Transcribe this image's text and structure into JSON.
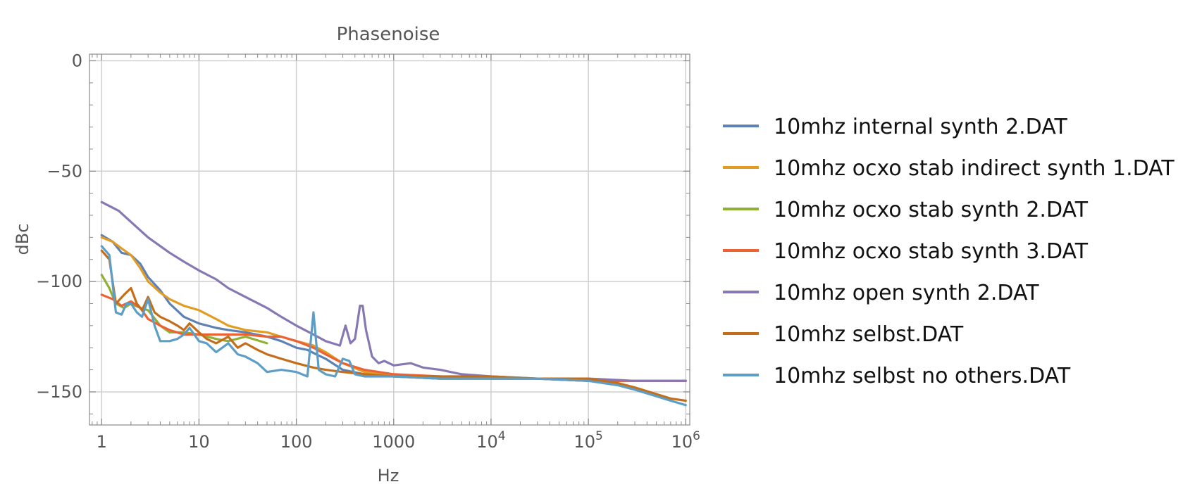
{
  "chart_data": {
    "type": "line",
    "title": "Phasenoise",
    "xlabel": "Hz",
    "ylabel": "dBc",
    "x_scale": "log",
    "xlim": [
      0.75,
      1100000
    ],
    "ylim": [
      -165,
      3
    ],
    "x_ticks": [
      {
        "value": 1,
        "base": "1",
        "exp": ""
      },
      {
        "value": 10,
        "base": "10",
        "exp": ""
      },
      {
        "value": 100,
        "base": "100",
        "exp": ""
      },
      {
        "value": 1000,
        "base": "1000",
        "exp": ""
      },
      {
        "value": 10000,
        "base": "10",
        "exp": "4"
      },
      {
        "value": 100000,
        "base": "10",
        "exp": "5"
      },
      {
        "value": 1000000,
        "base": "10",
        "exp": "6"
      }
    ],
    "y_ticks": [
      {
        "value": 0,
        "label": "0"
      },
      {
        "value": -50,
        "label": "−50"
      },
      {
        "value": -100,
        "label": "−100"
      },
      {
        "value": -150,
        "label": "−150"
      }
    ],
    "grid": true,
    "legend_position": "right",
    "series": [
      {
        "name": "10mhz internal synth 2.DAT",
        "color": "#5E81B5",
        "x": [
          1,
          1.3,
          1.6,
          2,
          2.5,
          3,
          4,
          5,
          7,
          10,
          15,
          20,
          30,
          50,
          70,
          100,
          130,
          160,
          200,
          300,
          500,
          1000,
          3000,
          10000,
          30000,
          100000,
          300000,
          600000,
          1000000
        ],
        "y": [
          -79,
          -82,
          -87,
          -88,
          -92,
          -98,
          -104,
          -110,
          -116,
          -119,
          -121,
          -122,
          -123,
          -125,
          -127,
          -130,
          -131,
          -133,
          -135,
          -140,
          -142,
          -143,
          -144,
          -144,
          -144,
          -145,
          -145,
          -145,
          -145
        ]
      },
      {
        "name": "10mhz ocxo stab indirect synth 1.DAT",
        "color": "#E19C24",
        "x": [
          1,
          1.3,
          1.6,
          2,
          2.5,
          3,
          4,
          5,
          7,
          10,
          15,
          20,
          30,
          50,
          70,
          100,
          150,
          200,
          300,
          500,
          1000,
          3000,
          10000,
          30000,
          100000,
          300000,
          1000000
        ],
        "y": [
          -80,
          -82,
          -85,
          -88,
          -94,
          -100,
          -105,
          -108,
          -111,
          -113,
          -117,
          -120,
          -122,
          -123,
          -125,
          -127,
          -129,
          -132,
          -137,
          -141,
          -143,
          -144,
          -144,
          -144,
          -145,
          -145,
          -145
        ]
      },
      {
        "name": "10mhz ocxo stab synth 2.DAT",
        "color": "#8FB032",
        "x": [
          1,
          1.2,
          1.4,
          1.7,
          2,
          2.5,
          3,
          4,
          5,
          7,
          10,
          15,
          20,
          30,
          50
        ],
        "y": [
          -97,
          -103,
          -110,
          -112,
          -110,
          -112,
          -113,
          -120,
          -123,
          -123,
          -124,
          -126,
          -127,
          -125,
          -128
        ]
      },
      {
        "name": "10mhz ocxo stab synth 3.DAT",
        "color": "#EB6235",
        "x": [
          1,
          1.3,
          1.6,
          2,
          2.5,
          3,
          4,
          5,
          7,
          10,
          15,
          20,
          30,
          50,
          70,
          100,
          150,
          200,
          300,
          500,
          1000,
          3000,
          10000,
          30000,
          100000,
          300000,
          1000000
        ],
        "y": [
          -106,
          -108,
          -111,
          -109,
          -112,
          -117,
          -120,
          -122,
          -124,
          -124,
          -124,
          -124,
          -124,
          -125,
          -125,
          -127,
          -130,
          -133,
          -137,
          -140,
          -142,
          -143,
          -144,
          -144,
          -145,
          -145,
          -145
        ]
      },
      {
        "name": "10mhz open synth 2.DAT",
        "color": "#8778B3",
        "x": [
          1,
          1.5,
          2,
          3,
          5,
          7,
          10,
          15,
          20,
          30,
          50,
          70,
          100,
          150,
          200,
          280,
          320,
          360,
          400,
          450,
          480,
          520,
          600,
          700,
          800,
          1000,
          1500,
          2000,
          3000,
          5000,
          10000,
          30000,
          100000,
          300000,
          1000000
        ],
        "y": [
          -64,
          -68,
          -73,
          -80,
          -87,
          -91,
          -95,
          -99,
          -103,
          -107,
          -112,
          -116,
          -120,
          -124,
          -127,
          -129,
          -120,
          -128,
          -126,
          -111,
          -111,
          -122,
          -134,
          -137,
          -136,
          -138,
          -137,
          -139,
          -140,
          -142,
          -143,
          -144,
          -144,
          -145,
          -145
        ]
      },
      {
        "name": "10mhz selbst.DAT",
        "color": "#C56E1A",
        "x": [
          1,
          1.2,
          1.4,
          1.7,
          2,
          2.3,
          2.6,
          3,
          3.5,
          4,
          5,
          6,
          7,
          8,
          10,
          12,
          15,
          20,
          25,
          30,
          40,
          50,
          70,
          100,
          150,
          200,
          300,
          500,
          1000,
          3000,
          10000,
          30000,
          100000,
          200000,
          300000,
          500000,
          700000,
          1000000
        ],
        "y": [
          -86,
          -90,
          -110,
          -106,
          -103,
          -110,
          -113,
          -107,
          -114,
          -116,
          -118,
          -120,
          -122,
          -119,
          -123,
          -126,
          -128,
          -125,
          -130,
          -128,
          -131,
          -133,
          -135,
          -137,
          -139,
          -140,
          -141,
          -142,
          -143,
          -143,
          -143,
          -144,
          -144,
          -146,
          -148,
          -151,
          -153,
          -154
        ]
      },
      {
        "name": "10mhz selbst no others.DAT",
        "color": "#5D9EC7",
        "x": [
          1,
          1.2,
          1.4,
          1.6,
          1.8,
          2,
          2.3,
          2.6,
          3,
          3.5,
          4,
          5,
          6,
          7,
          8,
          10,
          12,
          15,
          20,
          25,
          30,
          40,
          50,
          70,
          100,
          130,
          150,
          170,
          200,
          250,
          300,
          350,
          400,
          500,
          700,
          1000,
          3000,
          10000,
          30000,
          100000,
          200000,
          300000,
          500000,
          700000,
          1000000
        ],
        "y": [
          -84,
          -88,
          -114,
          -115,
          -110,
          -110,
          -114,
          -116,
          -108,
          -120,
          -127,
          -127,
          -126,
          -124,
          -121,
          -127,
          -128,
          -132,
          -128,
          -133,
          -134,
          -137,
          -141,
          -140,
          -141,
          -143,
          -114,
          -140,
          -142,
          -143,
          -135,
          -136,
          -142,
          -143,
          -143,
          -143,
          -144,
          -144,
          -144,
          -145,
          -147,
          -149,
          -152,
          -154,
          -156
        ]
      }
    ]
  }
}
